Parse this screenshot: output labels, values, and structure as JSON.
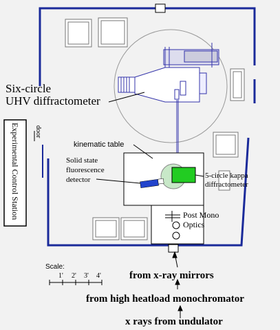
{
  "labels": {
    "six_circle_line1": "Six-circle",
    "six_circle_line2": "UHV diffractometer",
    "door": "door",
    "ecs": "Experimental Control Station",
    "kinematic_table": "kinematic table",
    "ssfd_line1": "Solid state",
    "ssfd_line2": "fluorescence",
    "ssfd_line3": "detector",
    "kappa_line1": "5-circle kappa",
    "kappa_line2": "diffractometer",
    "post_mono_line1": "Post Mono",
    "post_mono_line2": "Optics",
    "scale_title": "Scale:",
    "scale_ticks": [
      "1'",
      "2'",
      "3'",
      "4'"
    ],
    "from_mirrors": "from x-ray mirrors",
    "from_mono": "from high heatload monochromator",
    "from_undulator": "x rays from undulator"
  },
  "colors": {
    "wall": "#1a2a9a",
    "line": "#000000",
    "equipment": "#3333aa",
    "kappa_green": "#22cc22",
    "kappa_circle": "#aaddaa",
    "detector_blue": "#2244cc",
    "gray_circle": "#999999"
  }
}
